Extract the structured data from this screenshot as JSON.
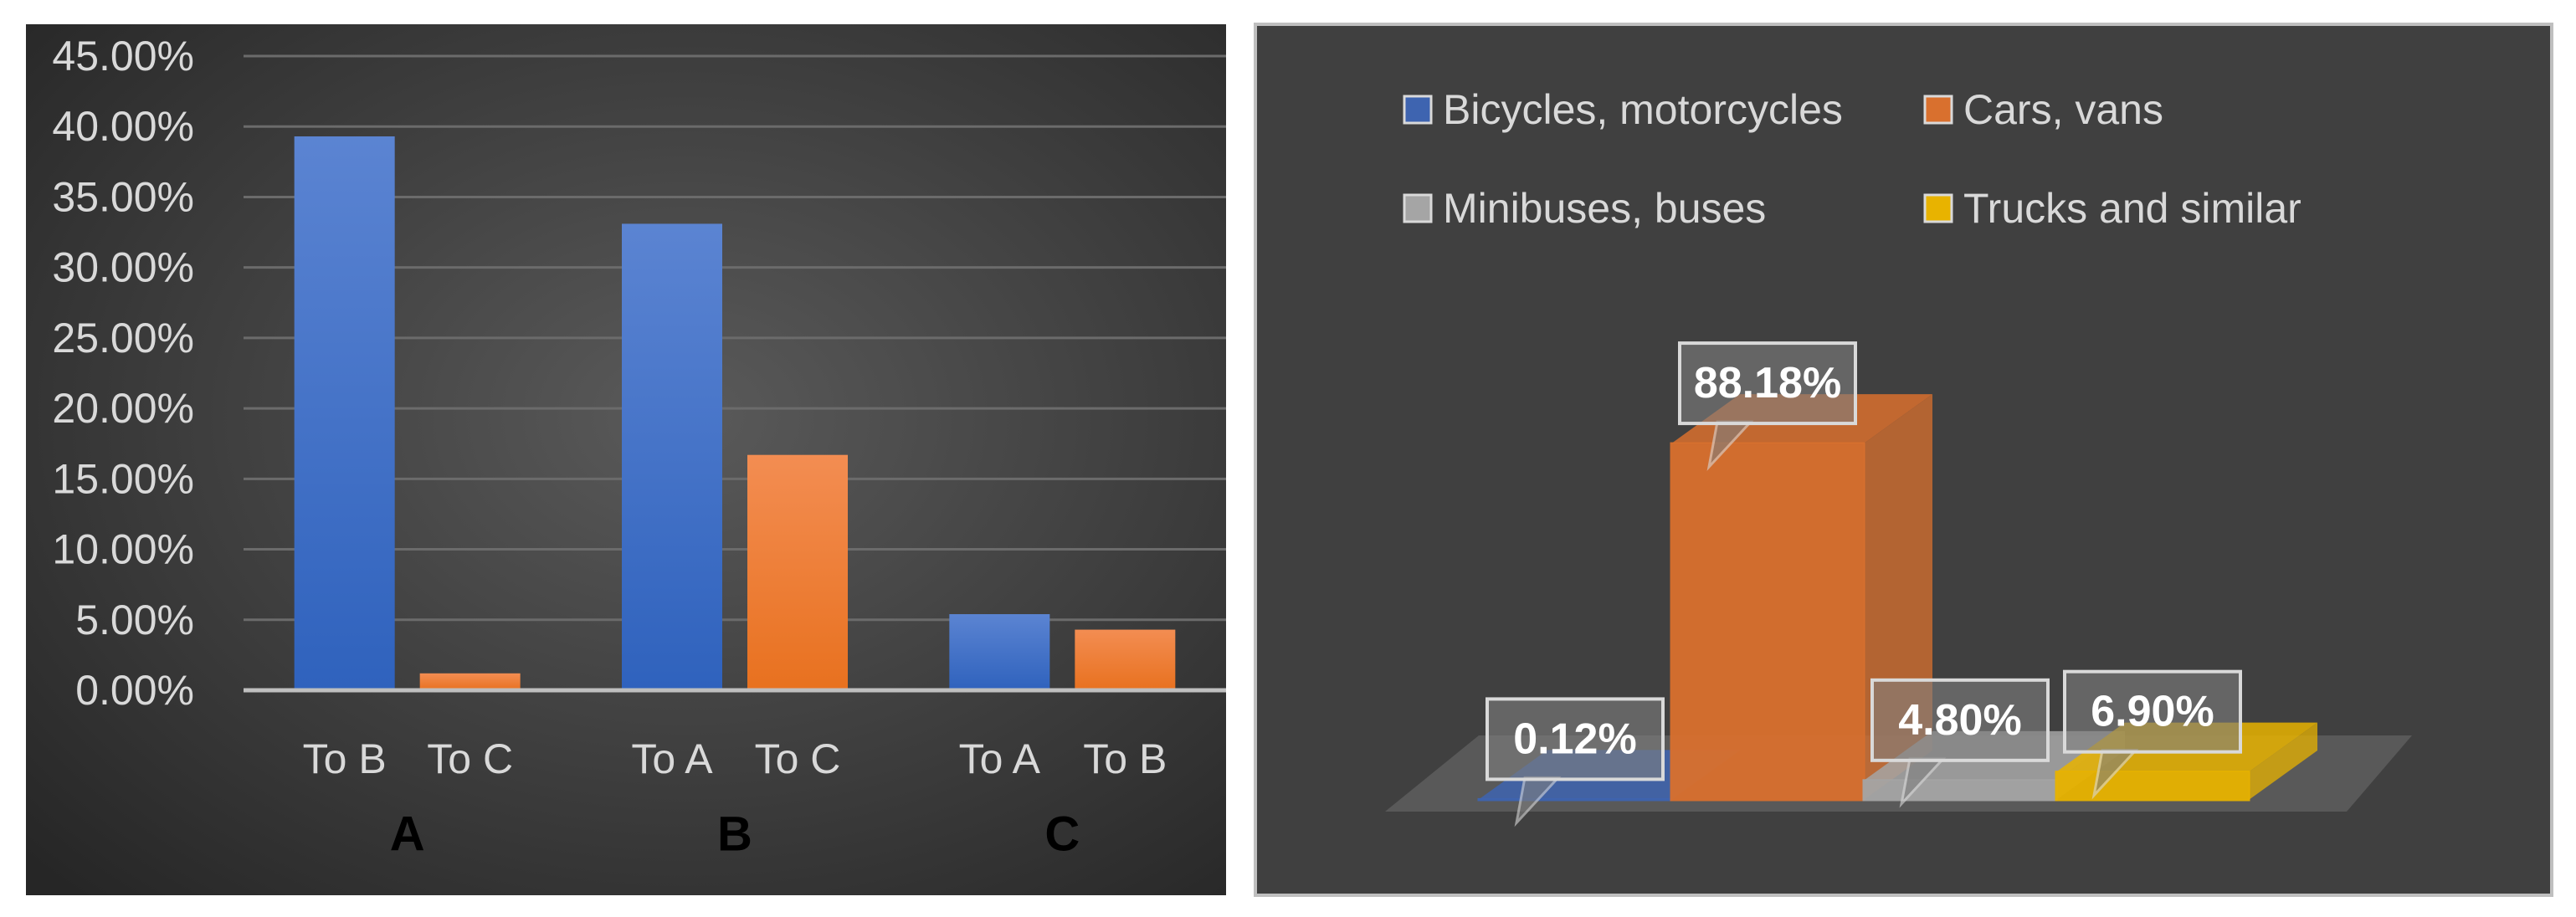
{
  "chart_data": [
    {
      "type": "grouped_bar",
      "groups": [
        {
          "name": "A",
          "categories": [
            "To B",
            "To C"
          ],
          "values": [
            39.3,
            1.2
          ]
        },
        {
          "name": "B",
          "categories": [
            "To A",
            "To C"
          ],
          "values": [
            33.1,
            16.7
          ]
        },
        {
          "name": "C",
          "categories": [
            "To A",
            "To B"
          ],
          "values": [
            5.4,
            4.3
          ]
        }
      ],
      "colors": [
        "#4a78cf",
        "#ee7f36"
      ],
      "ylim": [
        0,
        45
      ],
      "yticks": [
        {
          "value": 0,
          "label": "0.00%"
        },
        {
          "value": 5,
          "label": "5.00%"
        },
        {
          "value": 10,
          "label": "10.00%"
        },
        {
          "value": 15,
          "label": "15.00%"
        },
        {
          "value": 20,
          "label": "20.00%"
        },
        {
          "value": 25,
          "label": "25.00%"
        },
        {
          "value": 30,
          "label": "30.00%"
        },
        {
          "value": 35,
          "label": "35.00%"
        },
        {
          "value": 40,
          "label": "40.00%"
        },
        {
          "value": 45,
          "label": "45.00%"
        }
      ],
      "grid": true
    },
    {
      "type": "bar3d",
      "categories": [
        "Bicycles, motorcycles",
        "Cars, vans",
        "Minibuses, buses",
        "Trucks and similar"
      ],
      "colors": [
        "#3e64b0",
        "#d9702e",
        "#a5a5a5",
        "#e8b300"
      ],
      "values": [
        0.12,
        88.18,
        4.8,
        6.9
      ],
      "value_labels": [
        "0.12%",
        "88.18%",
        "4.80%",
        "6.90%"
      ],
      "legend": "top"
    }
  ]
}
